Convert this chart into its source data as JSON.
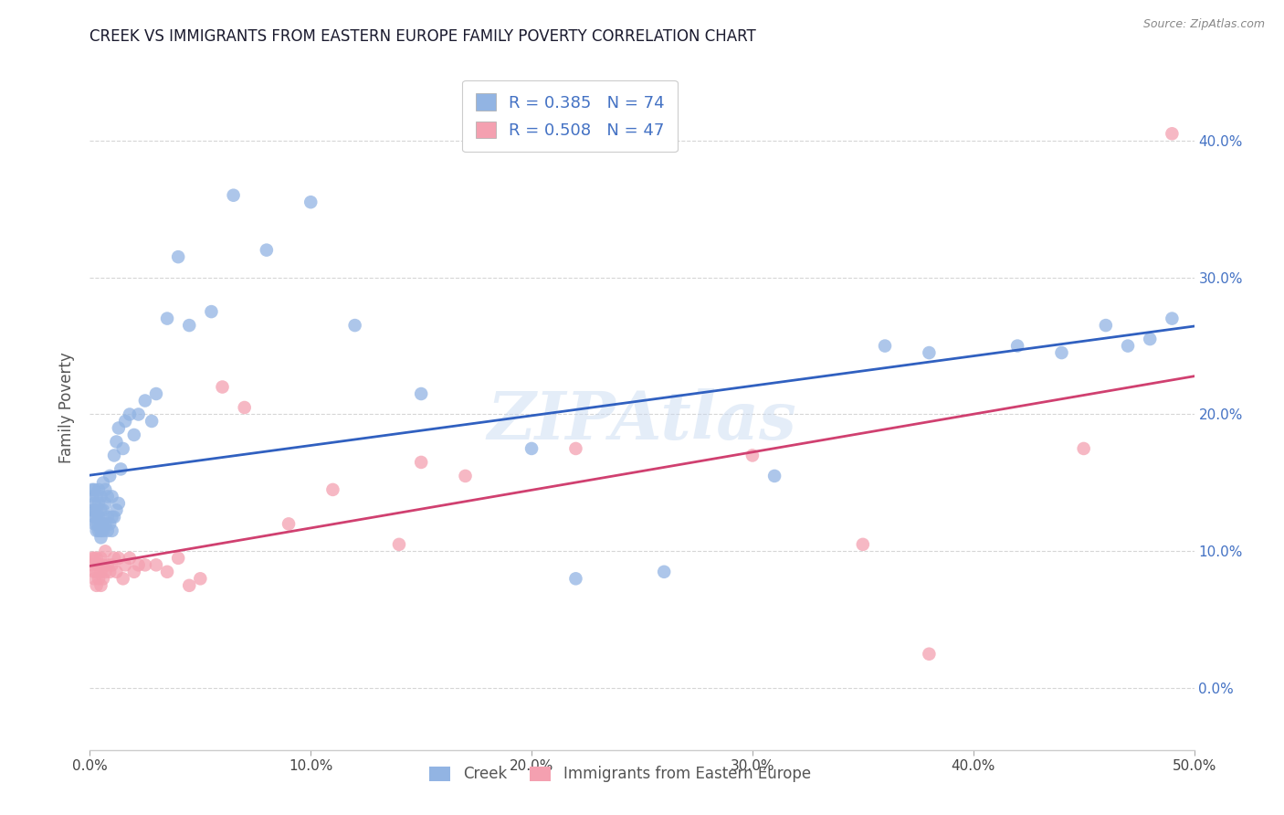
{
  "title": "CREEK VS IMMIGRANTS FROM EASTERN EUROPE FAMILY POVERTY CORRELATION CHART",
  "source": "Source: ZipAtlas.com",
  "ylabel": "Family Poverty",
  "xlim": [
    0.0,
    0.5
  ],
  "ylim": [
    -0.045,
    0.455
  ],
  "xticks": [
    0.0,
    0.1,
    0.2,
    0.3,
    0.4,
    0.5
  ],
  "yticks": [
    0.0,
    0.1,
    0.2,
    0.3,
    0.4
  ],
  "ytick_labels_right": [
    "0.0%",
    "10.0%",
    "20.0%",
    "30.0%",
    "40.0%"
  ],
  "xtick_labels": [
    "0.0%",
    "10.0%",
    "20.0%",
    "30.0%",
    "40.0%",
    "50.0%"
  ],
  "creek_R": 0.385,
  "creek_N": 74,
  "eastern_R": 0.508,
  "eastern_N": 47,
  "creek_color": "#92b4e3",
  "eastern_color": "#f4a0b0",
  "creek_line_color": "#3060c0",
  "eastern_line_color": "#d04070",
  "legend_label_creek": "Creek",
  "legend_label_eastern": "Immigrants from Eastern Europe",
  "watermark": "ZIPAtlas",
  "background_color": "#ffffff",
  "grid_color": "#cccccc",
  "creek_x": [
    0.001,
    0.001,
    0.001,
    0.002,
    0.002,
    0.002,
    0.002,
    0.002,
    0.003,
    0.003,
    0.003,
    0.003,
    0.003,
    0.004,
    0.004,
    0.004,
    0.004,
    0.004,
    0.005,
    0.005,
    0.005,
    0.005,
    0.005,
    0.006,
    0.006,
    0.006,
    0.006,
    0.007,
    0.007,
    0.007,
    0.008,
    0.008,
    0.008,
    0.009,
    0.009,
    0.01,
    0.01,
    0.01,
    0.011,
    0.011,
    0.012,
    0.012,
    0.013,
    0.013,
    0.014,
    0.015,
    0.016,
    0.018,
    0.02,
    0.022,
    0.025,
    0.028,
    0.03,
    0.035,
    0.04,
    0.045,
    0.055,
    0.065,
    0.08,
    0.1,
    0.12,
    0.15,
    0.2,
    0.22,
    0.26,
    0.31,
    0.36,
    0.38,
    0.42,
    0.44,
    0.46,
    0.47,
    0.48,
    0.49
  ],
  "creek_y": [
    0.13,
    0.14,
    0.145,
    0.12,
    0.125,
    0.13,
    0.135,
    0.145,
    0.115,
    0.12,
    0.125,
    0.13,
    0.14,
    0.115,
    0.12,
    0.125,
    0.135,
    0.145,
    0.11,
    0.115,
    0.12,
    0.13,
    0.14,
    0.115,
    0.12,
    0.13,
    0.15,
    0.12,
    0.135,
    0.145,
    0.115,
    0.125,
    0.14,
    0.12,
    0.155,
    0.115,
    0.125,
    0.14,
    0.125,
    0.17,
    0.13,
    0.18,
    0.135,
    0.19,
    0.16,
    0.175,
    0.195,
    0.2,
    0.185,
    0.2,
    0.21,
    0.195,
    0.215,
    0.27,
    0.315,
    0.265,
    0.275,
    0.36,
    0.32,
    0.355,
    0.265,
    0.215,
    0.175,
    0.08,
    0.085,
    0.155,
    0.25,
    0.245,
    0.25,
    0.245,
    0.265,
    0.25,
    0.255,
    0.27
  ],
  "eastern_x": [
    0.001,
    0.001,
    0.002,
    0.002,
    0.002,
    0.003,
    0.003,
    0.003,
    0.004,
    0.004,
    0.005,
    0.005,
    0.005,
    0.006,
    0.006,
    0.007,
    0.007,
    0.008,
    0.009,
    0.01,
    0.011,
    0.012,
    0.013,
    0.015,
    0.016,
    0.018,
    0.02,
    0.022,
    0.025,
    0.03,
    0.035,
    0.04,
    0.045,
    0.05,
    0.06,
    0.07,
    0.09,
    0.11,
    0.14,
    0.15,
    0.17,
    0.22,
    0.3,
    0.35,
    0.38,
    0.45,
    0.49
  ],
  "eastern_y": [
    0.09,
    0.095,
    0.08,
    0.085,
    0.095,
    0.075,
    0.085,
    0.095,
    0.08,
    0.09,
    0.075,
    0.085,
    0.095,
    0.08,
    0.09,
    0.085,
    0.1,
    0.09,
    0.085,
    0.09,
    0.095,
    0.085,
    0.095,
    0.08,
    0.09,
    0.095,
    0.085,
    0.09,
    0.09,
    0.09,
    0.085,
    0.095,
    0.075,
    0.08,
    0.22,
    0.205,
    0.12,
    0.145,
    0.105,
    0.165,
    0.155,
    0.175,
    0.17,
    0.105,
    0.025,
    0.175,
    0.405
  ]
}
